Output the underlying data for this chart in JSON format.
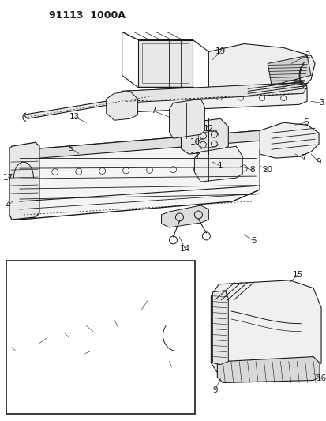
{
  "title": "91113  1000A",
  "bg": "#ffffff",
  "lc": "#1a1a1a",
  "figsize": [
    4.14,
    5.33
  ],
  "dpi": 100
}
